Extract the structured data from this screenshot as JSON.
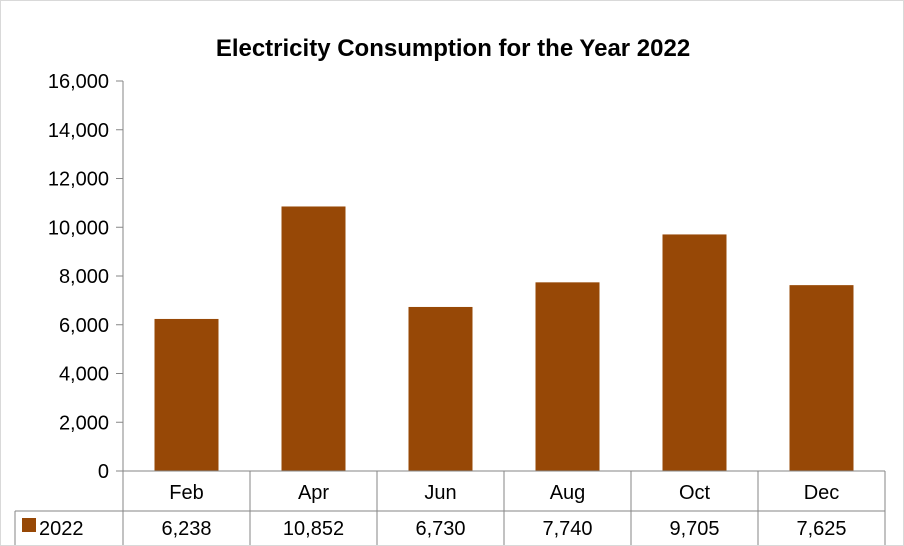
{
  "chart_data": {
    "type": "bar",
    "title": "Electricity Consumption for the Year 2022",
    "categories": [
      "Feb",
      "Apr",
      "Jun",
      "Aug",
      "Oct",
      "Dec"
    ],
    "series": [
      {
        "name": "2022",
        "color": "#974806",
        "values": [
          6238,
          10852,
          6730,
          7740,
          9705,
          7625
        ],
        "value_labels": [
          "6,238",
          "10,852",
          "6,730",
          "7,740",
          "9,705",
          "7,625"
        ]
      }
    ],
    "ylim": [
      0,
      16000
    ],
    "yticks": [
      0,
      2000,
      4000,
      6000,
      8000,
      10000,
      12000,
      14000,
      16000
    ],
    "ytick_labels": [
      "0",
      "2,000",
      "4,000",
      "6,000",
      "8,000",
      "10,000",
      "12,000",
      "14,000",
      "16,000"
    ],
    "data_table": true,
    "legend": "data-table-left",
    "grid": false
  }
}
